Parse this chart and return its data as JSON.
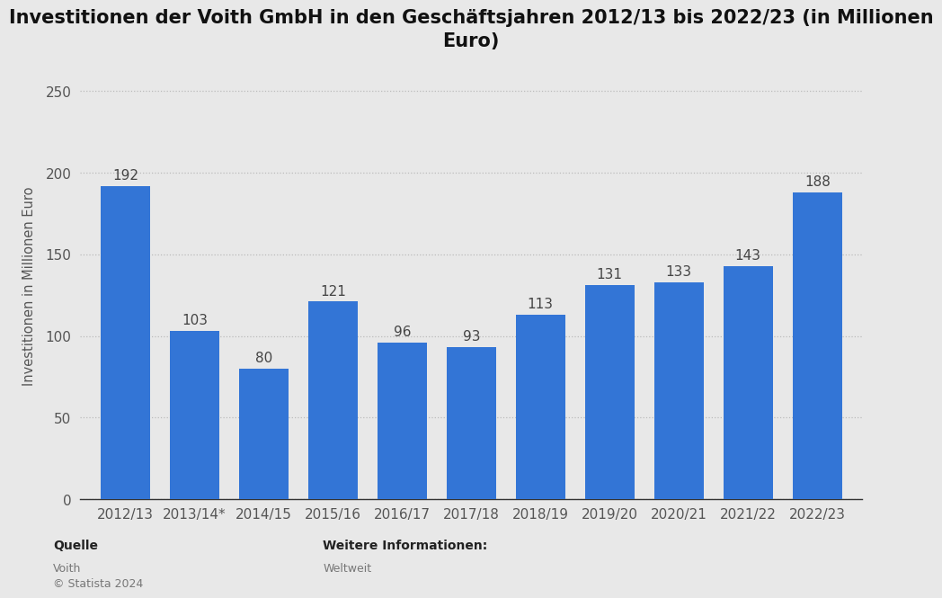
{
  "title": "Investitionen der Voith GmbH in den Geschäftsjahren 2012/13 bis 2022/23 (in Millionen\nEuro)",
  "ylabel": "Investitionen in Millionen Euro",
  "categories": [
    "2012/13",
    "2013/14*",
    "2014/15",
    "2015/16",
    "2016/17",
    "2017/18",
    "2018/19",
    "2019/20",
    "2020/21",
    "2021/22",
    "2022/23"
  ],
  "values": [
    192,
    103,
    80,
    121,
    96,
    93,
    113,
    131,
    133,
    143,
    188
  ],
  "bar_color": "#3375d6",
  "ylim": [
    0,
    262
  ],
  "yticks": [
    0,
    50,
    100,
    150,
    200,
    250
  ],
  "background_color": "#e8e8e8",
  "title_fontsize": 15,
  "label_fontsize": 10.5,
  "tick_fontsize": 11,
  "value_label_fontsize": 11,
  "footer_quelle_bold": "Quelle",
  "footer_quelle_line1": "Voith",
  "footer_quelle_line2": "© Statista 2024",
  "footer_info_bold": "Weitere Informationen:",
  "footer_info": "Weltweit",
  "grid_color": "#bbbbbb",
  "spine_bottom_color": "#333333",
  "tick_color": "#555555",
  "value_label_color": "#444444"
}
